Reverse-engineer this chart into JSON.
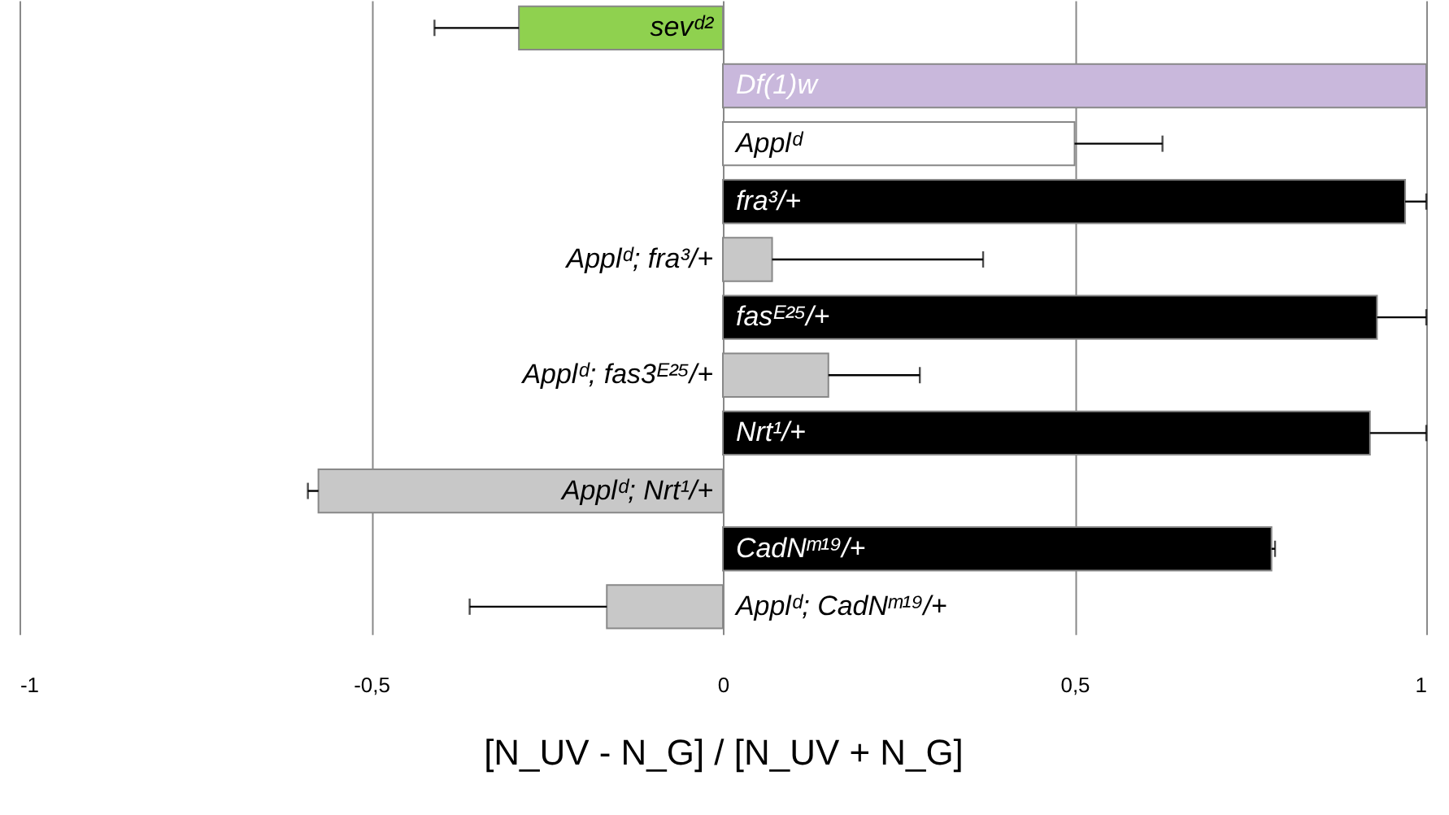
{
  "chart_data": {
    "type": "bar",
    "orientation": "horizontal",
    "categories": [
      "sevᵈ²",
      "Df(1)w",
      "Applᵈ",
      "fra³/+",
      "Applᵈ; fra³/+",
      "fasᴱ²⁵/+",
      "Applᵈ; fas3ᴱ²⁵/+",
      "Nrt¹/+",
      "Applᵈ; Nrt¹/+",
      "CadNᵐ¹⁹/+",
      "Applᵈ; CadNᵐ¹⁹/+"
    ],
    "values": [
      -0.29,
      1.0,
      0.5,
      0.97,
      0.07,
      0.93,
      0.15,
      0.92,
      -0.575,
      0.78,
      -0.165
    ],
    "errors": [
      0.12,
      null,
      0.125,
      0.03,
      0.3,
      0.07,
      0.13,
      0.08,
      0.015,
      0.005,
      0.195
    ],
    "colors": [
      "#8fd14f",
      "#c9b8dc",
      "#ffffff",
      "#000000",
      "#c8c8c8",
      "#000000",
      "#c8c8c8",
      "#000000",
      "#c8c8c8",
      "#000000",
      "#c8c8c8"
    ],
    "xlabel": "[N_UV - N_G] / [N_UV + N_G]",
    "xlim": [
      -1,
      1
    ],
    "xticks": [
      {
        "value": -1,
        "label": "-1"
      },
      {
        "value": -0.5,
        "label": "-0,5"
      },
      {
        "value": 0,
        "label": "0"
      },
      {
        "value": 0.5,
        "label": "0,5"
      },
      {
        "value": 1,
        "label": "1"
      }
    ],
    "grid": "x",
    "tick_labels": "x"
  }
}
